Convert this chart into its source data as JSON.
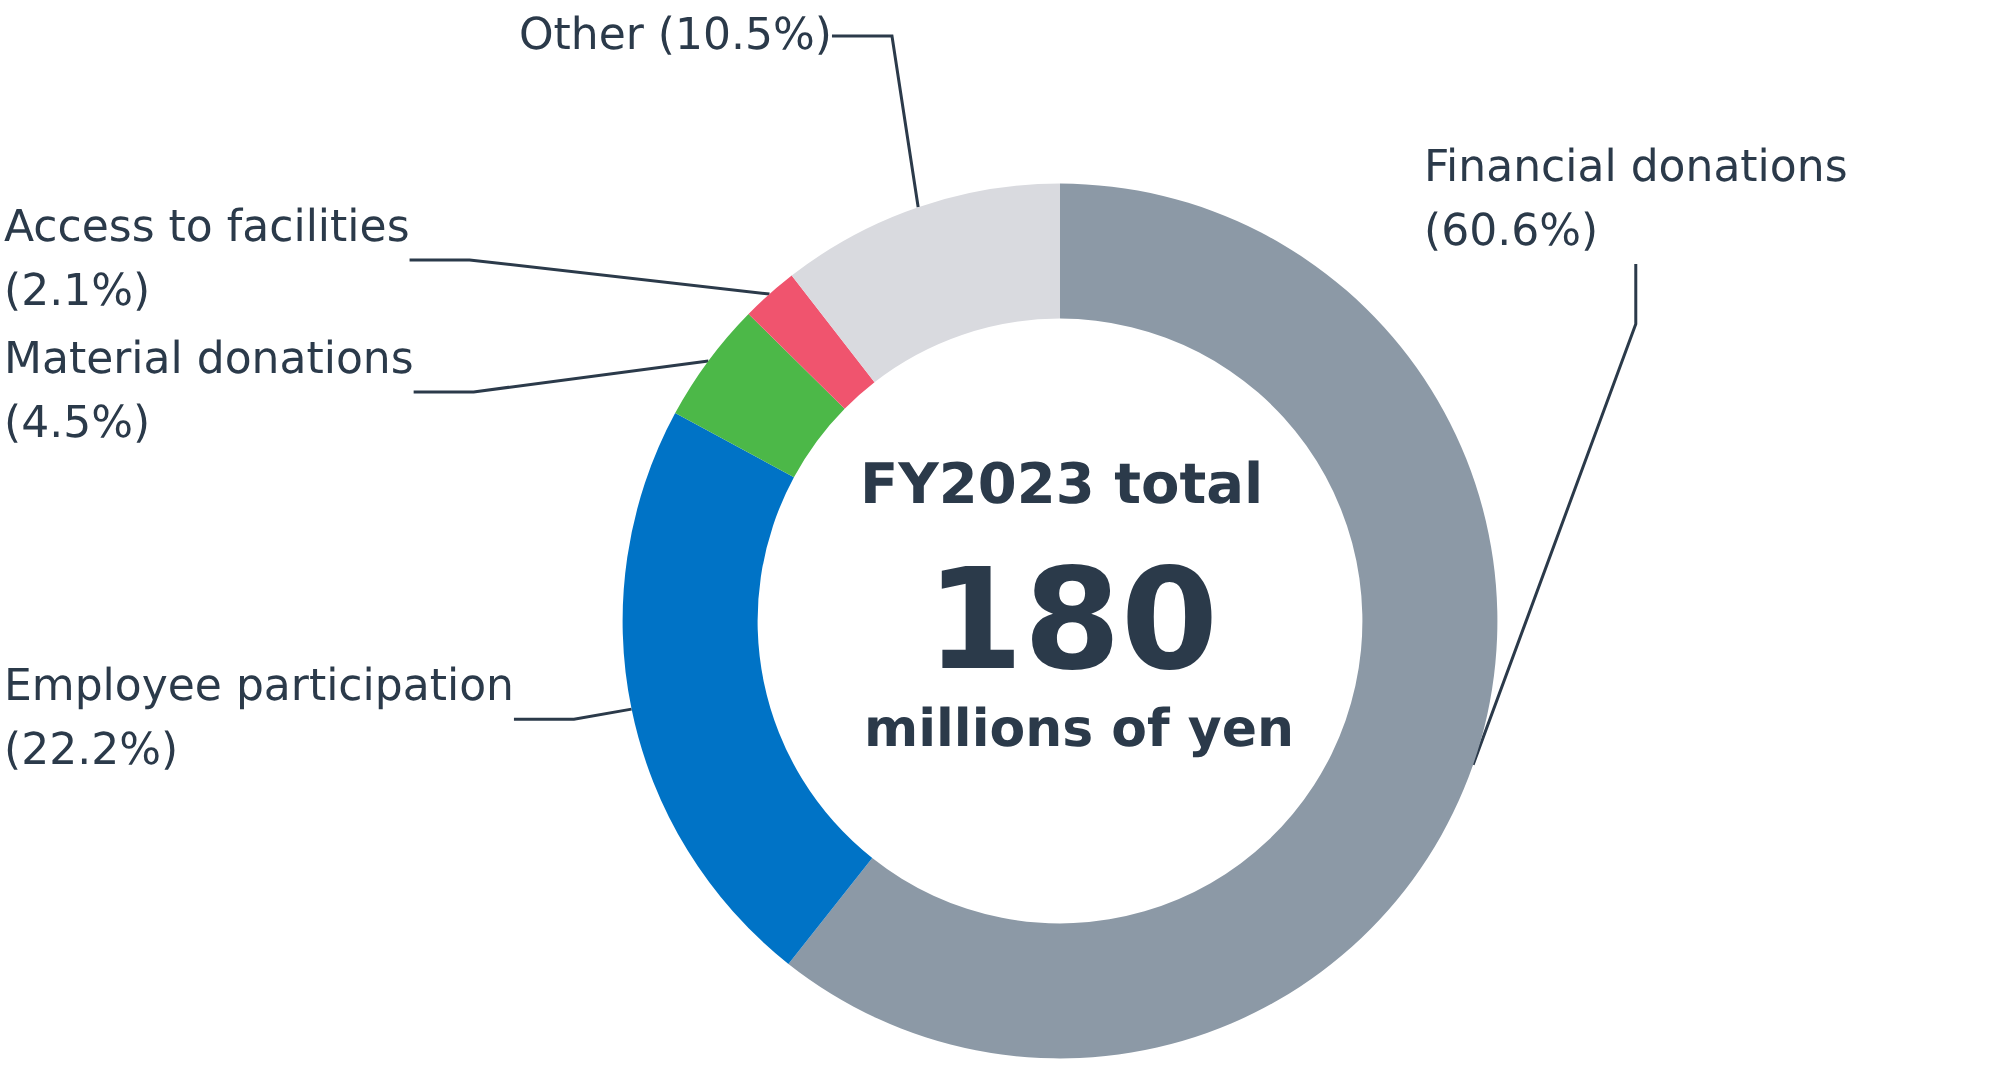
{
  "chart_data": {
    "type": "donut",
    "title": "FY2023 total",
    "annotations": [
      "180",
      "millions of yen"
    ],
    "categories": [
      "Financial donations",
      "Employee participation",
      "Material donations",
      "Access to facilities",
      "Other"
    ],
    "values": [
      60.6,
      22.2,
      4.5,
      2.1,
      10.5
    ],
    "colors": [
      "#8c99a6",
      "#0073c6",
      "#4cb848",
      "#f0546e",
      "#d9dadf"
    ],
    "value_labels": [
      "(60.6%)",
      "(22.2%)",
      "(4.5%)",
      "(2.1%)",
      "(10.5%)"
    ],
    "legend": false
  }
}
